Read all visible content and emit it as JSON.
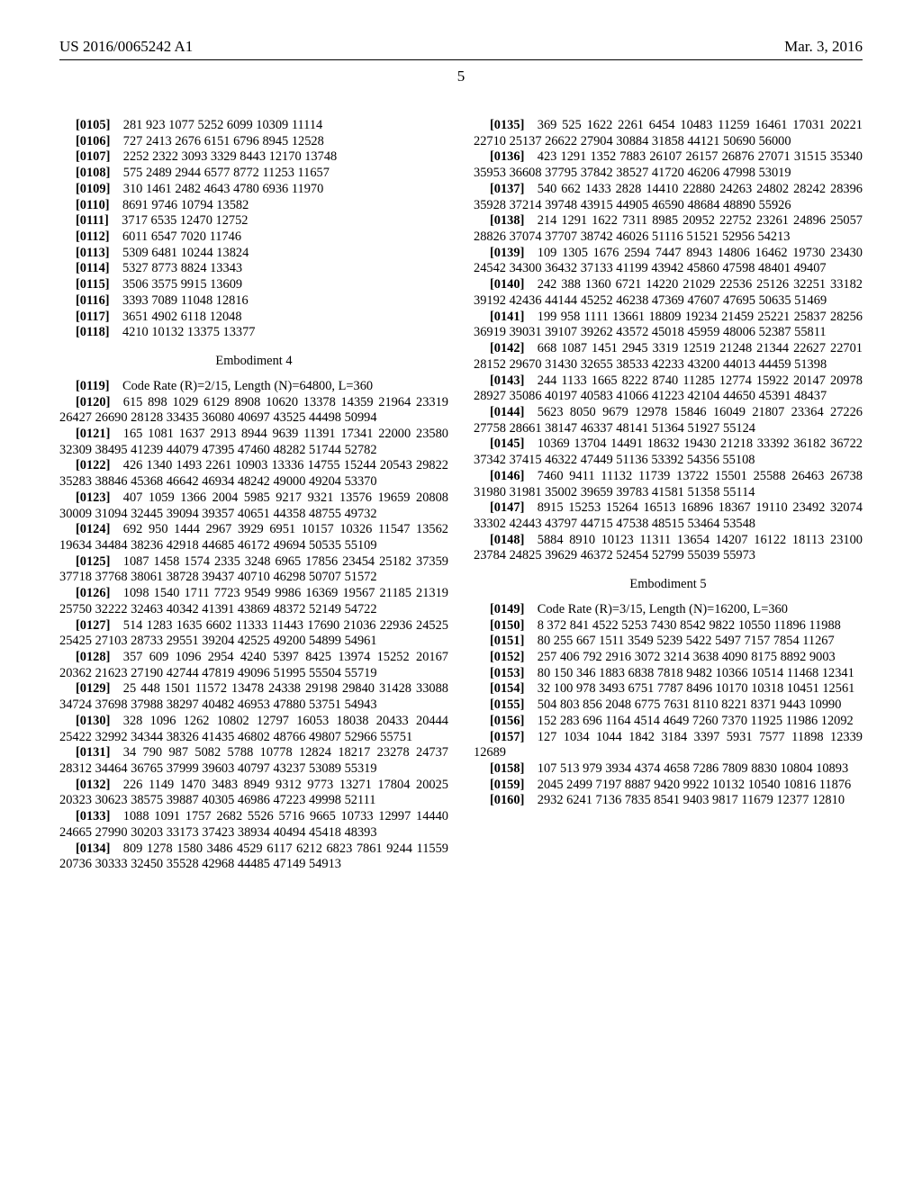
{
  "header": {
    "left": "US 2016/0065242 A1",
    "right": "Mar. 3, 2016",
    "page_number": "5"
  },
  "left_col": [
    {
      "tag": "[0105]",
      "text": "281 923 1077 5252 6099 10309 11114"
    },
    {
      "tag": "[0106]",
      "text": "727 2413 2676 6151 6796 8945 12528"
    },
    {
      "tag": "[0107]",
      "text": "2252 2322 3093 3329 8443 12170 13748"
    },
    {
      "tag": "[0108]",
      "text": "575 2489 2944 6577 8772 11253 11657"
    },
    {
      "tag": "[0109]",
      "text": "310 1461 2482 4643 4780 6936 11970"
    },
    {
      "tag": "[0110]",
      "text": "8691 9746 10794 13582"
    },
    {
      "tag": "[0111]",
      "text": "3717 6535 12470 12752"
    },
    {
      "tag": "[0112]",
      "text": "6011 6547 7020 11746"
    },
    {
      "tag": "[0113]",
      "text": "5309 6481 10244 13824"
    },
    {
      "tag": "[0114]",
      "text": "5327 8773 8824 13343"
    },
    {
      "tag": "[0115]",
      "text": "3506 3575 9915 13609"
    },
    {
      "tag": "[0116]",
      "text": "3393 7089 11048 12816"
    },
    {
      "tag": "[0117]",
      "text": "3651 4902 6118 12048"
    },
    {
      "tag": "[0118]",
      "text": "4210 10132 13375 13377"
    },
    {
      "heading": "Embodiment 4"
    },
    {
      "tag": "[0119]",
      "text": "Code Rate (R)=2/15, Length (N)=64800, L=360"
    },
    {
      "tag": "[0120]",
      "text": "615 898 1029 6129 8908 10620 13378 14359 21964 23319 26427 26690 28128 33435 36080 40697 43525 44498 50994"
    },
    {
      "tag": "[0121]",
      "text": "165 1081 1637 2913 8944 9639 11391 17341 22000 23580 32309 38495 41239 44079 47395 47460 48282 51744 52782"
    },
    {
      "tag": "[0122]",
      "text": "426 1340 1493 2261 10903 13336 14755 15244 20543 29822 35283 38846 45368 46642 46934 48242 49000 49204 53370"
    },
    {
      "tag": "[0123]",
      "text": "407 1059 1366 2004 5985 9217 9321 13576 19659 20808 30009 31094 32445 39094 39357 40651 44358 48755 49732"
    },
    {
      "tag": "[0124]",
      "text": "692 950 1444 2967 3929 6951 10157 10326 11547 13562 19634 34484 38236 42918 44685 46172 49694 50535 55109"
    },
    {
      "tag": "[0125]",
      "text": "1087 1458 1574 2335 3248 6965 17856 23454 25182 37359 37718 37768 38061 38728 39437 40710 46298 50707 51572"
    },
    {
      "tag": "[0126]",
      "text": "1098 1540 1711 7723 9549 9986 16369 19567 21185 21319 25750 32222 32463 40342 41391 43869 48372 52149 54722"
    },
    {
      "tag": "[0127]",
      "text": "514 1283 1635 6602 11333 11443 17690 21036 22936 24525 25425 27103 28733 29551 39204 42525 49200 54899 54961"
    },
    {
      "tag": "[0128]",
      "text": "357 609 1096 2954 4240 5397 8425 13974 15252 20167 20362 21623 27190 42744 47819 49096 51995 55504 55719"
    },
    {
      "tag": "[0129]",
      "text": "25 448 1501 11572 13478 24338 29198 29840 31428 33088 34724 37698 37988 38297 40482 46953 47880 53751 54943"
    },
    {
      "tag": "[0130]",
      "text": "328 1096 1262 10802 12797 16053 18038 20433 20444 25422 32992 34344 38326 41435 46802 48766 49807 52966 55751"
    },
    {
      "tag": "[0131]",
      "text": "34 790 987 5082 5788 10778 12824 18217 23278 24737 28312 34464 36765 37999 39603 40797 43237 53089 55319"
    },
    {
      "tag": "[0132]",
      "text": "226 1149 1470 3483 8949 9312 9773 13271 17804 20025 20323 30623 38575 39887 40305 46986 47223 49998 52111"
    },
    {
      "tag": "[0133]",
      "text": "1088 1091 1757 2682 5526 5716 9665 10733 12997 14440 24665 27990 30203 33173 37423 38934 40494 45418 48393"
    },
    {
      "tag": "[0134]",
      "text": "809 1278 1580 3486 4529 6117 6212 6823 7861 9244 11559 20736 30333 32450 35528 42968 44485 47149 54913"
    }
  ],
  "right_col": [
    {
      "tag": "[0135]",
      "text": "369 525 1622 2261 6454 10483 11259 16461 17031 20221 22710 25137 26622 27904 30884 31858 44121 50690 56000"
    },
    {
      "tag": "[0136]",
      "text": "423 1291 1352 7883 26107 26157 26876 27071 31515 35340 35953 36608 37795 37842 38527 41720 46206 47998 53019"
    },
    {
      "tag": "[0137]",
      "text": "540 662 1433 2828 14410 22880 24263 24802 28242 28396 35928 37214 39748 43915 44905 46590 48684 48890 55926"
    },
    {
      "tag": "[0138]",
      "text": "214 1291 1622 7311 8985 20952 22752 23261 24896 25057 28826 37074 37707 38742 46026 51116 51521 52956 54213"
    },
    {
      "tag": "[0139]",
      "text": "109 1305 1676 2594 7447 8943 14806 16462 19730 23430 24542 34300 36432 37133 41199 43942 45860 47598 48401 49407"
    },
    {
      "tag": "[0140]",
      "text": "242 388 1360 6721 14220 21029 22536 25126 32251 33182 39192 42436 44144 45252 46238 47369 47607 47695 50635 51469"
    },
    {
      "tag": "[0141]",
      "text": "199 958 1111 13661 18809 19234 21459 25221 25837 28256 36919 39031 39107 39262 43572 45018 45959 48006 52387 55811"
    },
    {
      "tag": "[0142]",
      "text": "668 1087 1451 2945 3319 12519 21248 21344 22627 22701 28152 29670 31430 32655 38533 42233 43200 44013 44459 51398"
    },
    {
      "tag": "[0143]",
      "text": "244 1133 1665 8222 8740 11285 12774 15922 20147 20978 28927 35086 40197 40583 41066 41223 42104 44650 45391 48437"
    },
    {
      "tag": "[0144]",
      "text": "5623 8050 9679 12978 15846 16049 21807 23364 27226 27758 28661 38147 46337 48141 51364 51927 55124"
    },
    {
      "tag": "[0145]",
      "text": "10369 13704 14491 18632 19430 21218 33392 36182 36722 37342 37415 46322 47449 51136 53392 54356 55108"
    },
    {
      "tag": "[0146]",
      "text": "7460 9411 11132 11739 13722 15501 25588 26463 26738 31980 31981 35002 39659 39783 41581 51358 55114"
    },
    {
      "tag": "[0147]",
      "text": "8915 15253 15264 16513 16896 18367 19110 23492 32074 33302 42443 43797 44715 47538 48515 53464 53548"
    },
    {
      "tag": "[0148]",
      "text": "5884 8910 10123 11311 13654 14207 16122 18113 23100 23784 24825 39629 46372 52454 52799 55039 55973"
    },
    {
      "heading": "Embodiment 5"
    },
    {
      "tag": "[0149]",
      "text": "Code Rate (R)=3/15, Length (N)=16200, L=360"
    },
    {
      "tag": "[0150]",
      "text": "8 372 841 4522 5253 7430 8542 9822 10550 11896 11988"
    },
    {
      "tag": "[0151]",
      "text": "80 255 667 1511 3549 5239 5422 5497 7157 7854 11267"
    },
    {
      "tag": "[0152]",
      "text": "257 406 792 2916 3072 3214 3638 4090 8175 8892 9003"
    },
    {
      "tag": "[0153]",
      "text": "80 150 346 1883 6838 7818 9482 10366 10514 11468 12341"
    },
    {
      "tag": "[0154]",
      "text": "32 100 978 3493 6751 7787 8496 10170 10318 10451 12561"
    },
    {
      "tag": "[0155]",
      "text": "504 803 856 2048 6775 7631 8110 8221 8371 9443 10990"
    },
    {
      "tag": "[0156]",
      "text": "152 283 696 1164 4514 4649 7260 7370 11925 11986 12092"
    },
    {
      "tag": "[0157]",
      "text": "127 1034 1044 1842 3184 3397 5931 7577 11898 12339 12689"
    },
    {
      "tag": "[0158]",
      "text": "107 513 979 3934 4374 4658 7286 7809 8830 10804 10893"
    },
    {
      "tag": "[0159]",
      "text": "2045 2499 7197 8887 9420 9922 10132 10540 10816 11876"
    },
    {
      "tag": "[0160]",
      "text": "2932 6241 7136 7835 8541 9403 9817 11679 12377 12810"
    }
  ]
}
